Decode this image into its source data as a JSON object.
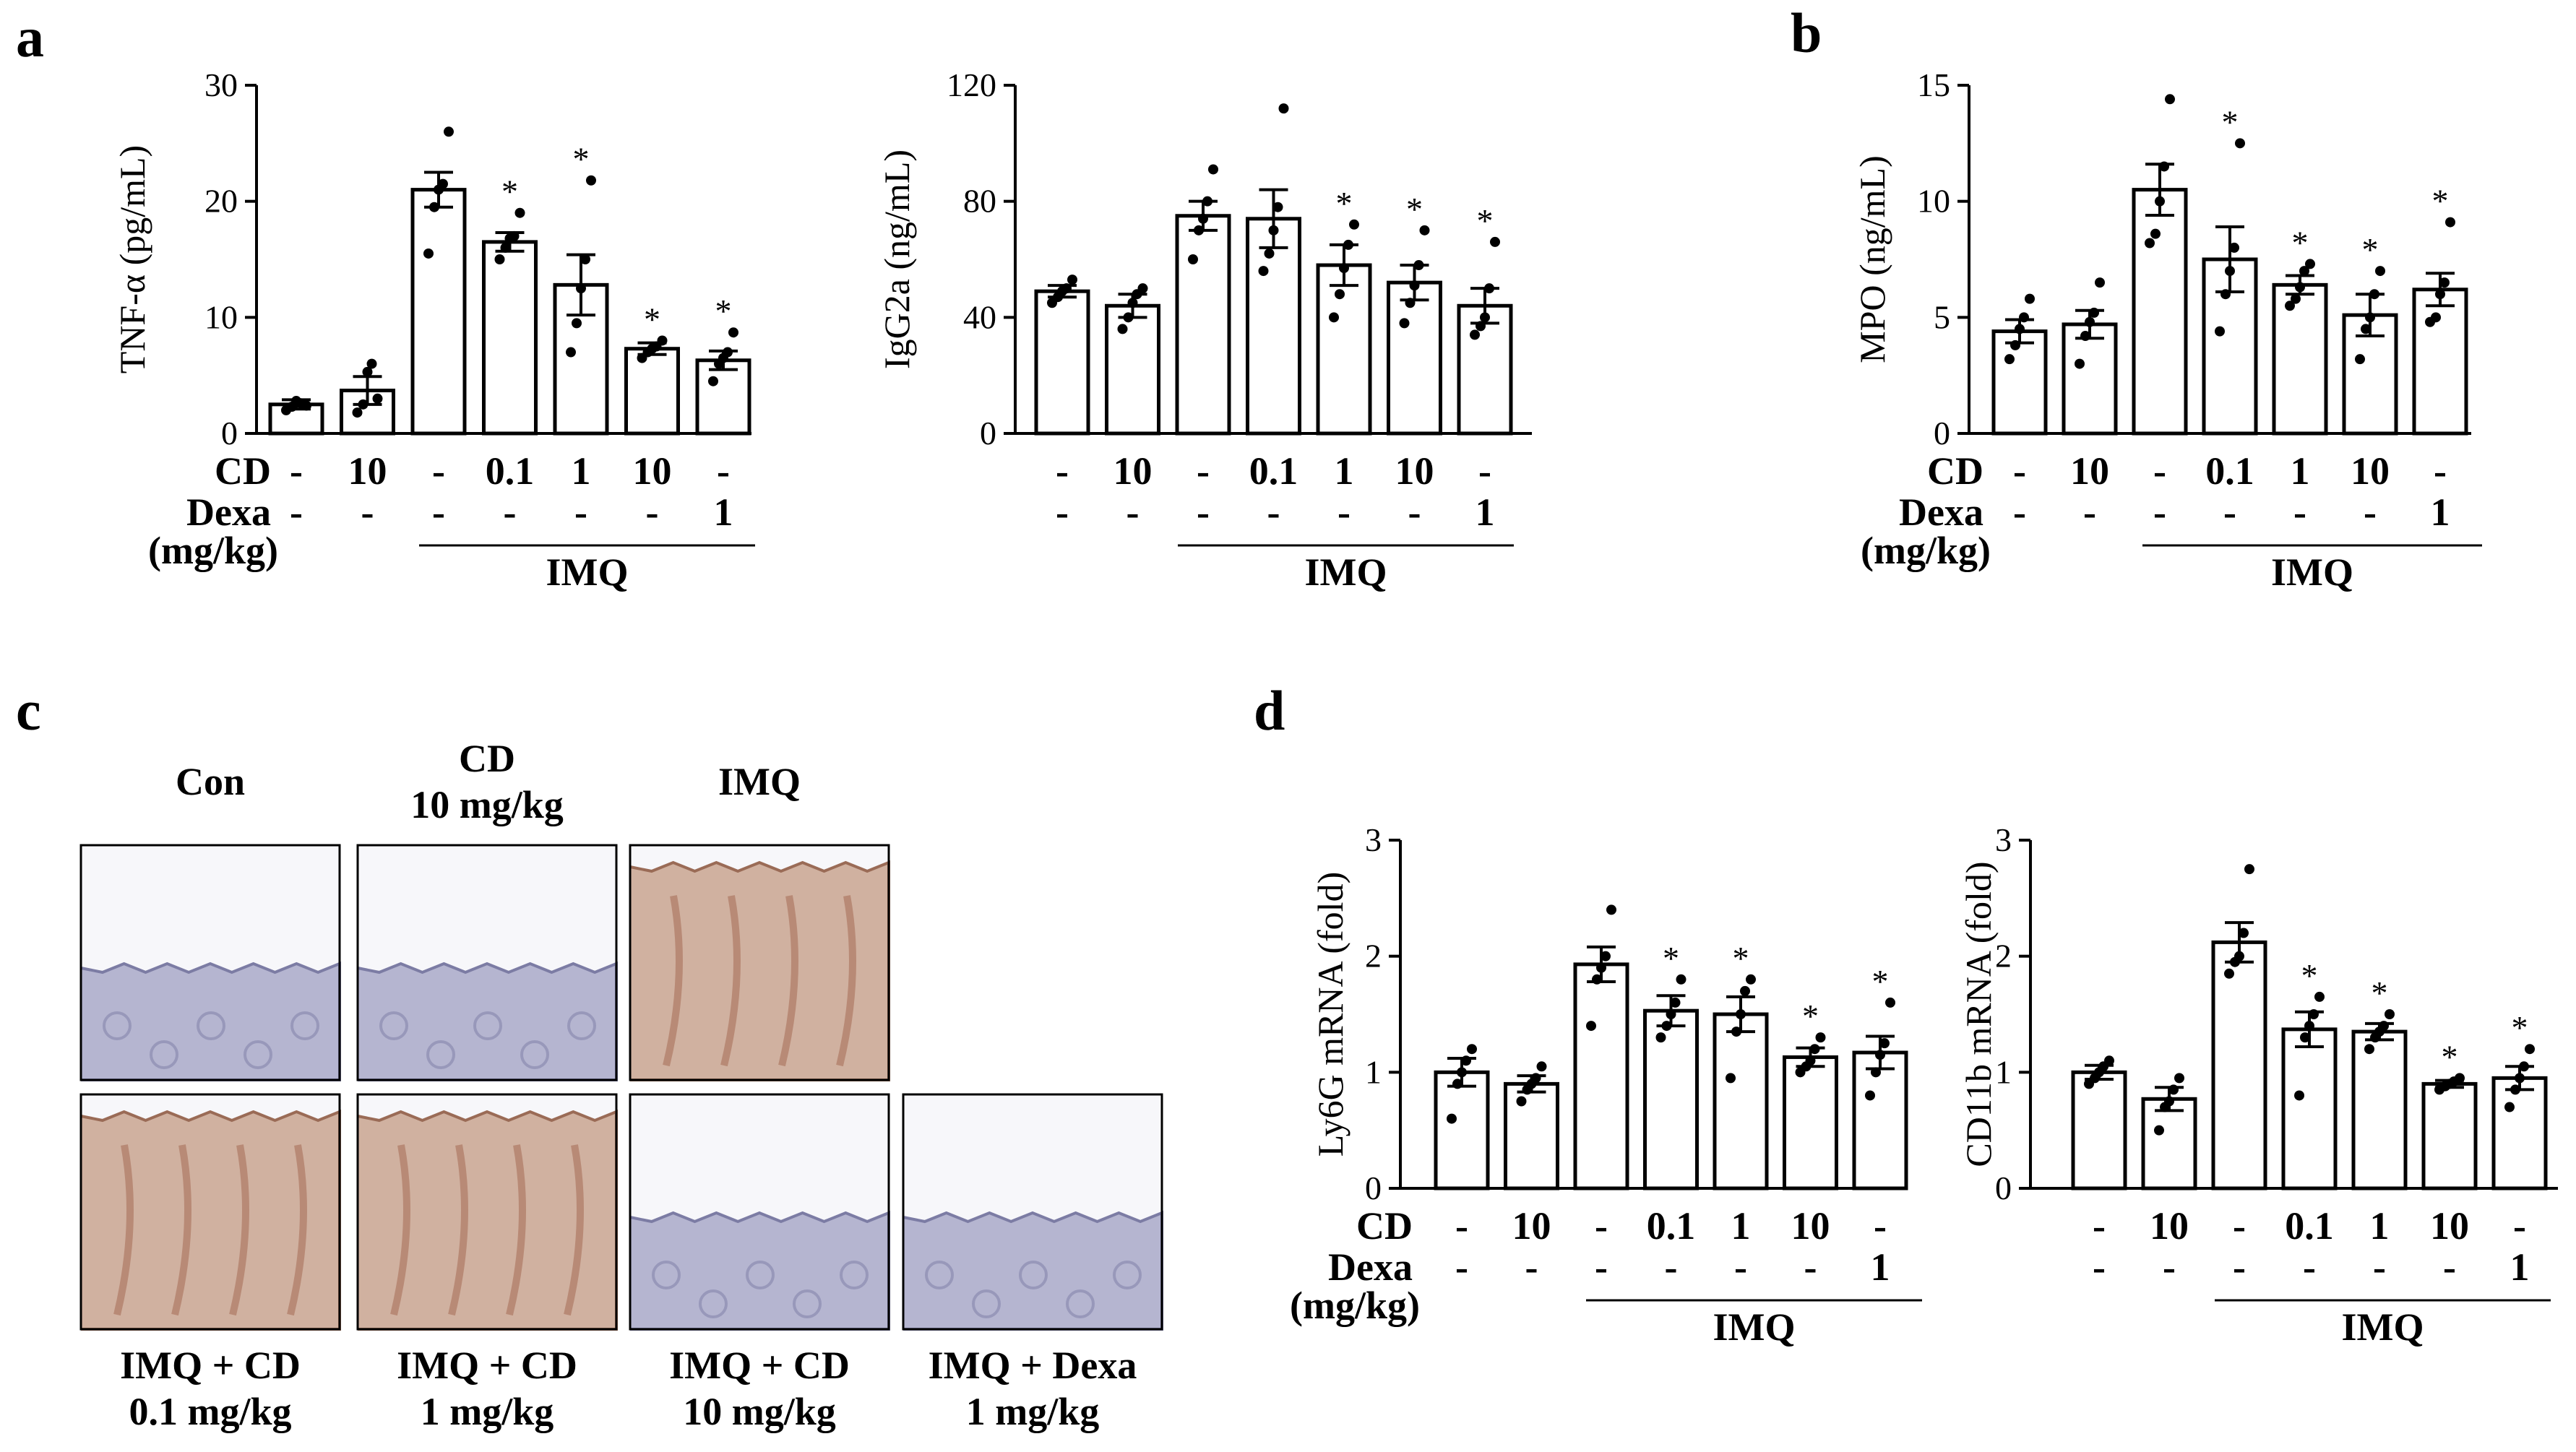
{
  "panel_labels": {
    "a": "a",
    "b": "b",
    "c": "c",
    "d": "d"
  },
  "row_labels": {
    "cd": "CD",
    "dexa": "Dexa",
    "unit": "(mg/kg)",
    "imq": "IMQ"
  },
  "groups": {
    "cd": [
      "-",
      "10",
      "-",
      "0.1",
      "1",
      "10",
      "-"
    ],
    "dexa": [
      "-",
      "-",
      "-",
      "-",
      "-",
      "-",
      "1"
    ]
  },
  "significance_mark": "*",
  "histology": {
    "row1": [
      {
        "title": [
          "Con"
        ],
        "style": "normal"
      },
      {
        "title": [
          "CD",
          "10 mg/kg"
        ],
        "style": "normal"
      },
      {
        "title": [
          "IMQ"
        ],
        "style": "inflamed"
      }
    ],
    "row2": [
      {
        "title": [
          "IMQ + CD",
          "0.1 mg/kg"
        ],
        "style": "inflamed"
      },
      {
        "title": [
          "IMQ + CD",
          "1 mg/kg"
        ],
        "style": "inflamed"
      },
      {
        "title": [
          "IMQ + CD",
          "10 mg/kg"
        ],
        "style": "normal"
      },
      {
        "title": [
          "IMQ + Dexa",
          "1 mg/kg"
        ],
        "style": "normal"
      }
    ]
  },
  "colors": {
    "bar_fill": "#ffffff",
    "stroke": "#000000",
    "tissue_normal": "#a9a9c8",
    "tissue_inflamed": "#c9a48f"
  },
  "chart_data": [
    {
      "id": "tnf",
      "panel": "a",
      "type": "bar",
      "ylabel": "TNF-α (pg/mL)",
      "ylim": [
        0,
        30
      ],
      "yticks": [
        0,
        10,
        20,
        30
      ],
      "show_row_labels": true,
      "values": [
        2.5,
        3.7,
        21.0,
        16.5,
        12.8,
        7.3,
        6.3
      ],
      "errors": [
        0.4,
        1.2,
        1.5,
        0.8,
        2.6,
        0.5,
        0.8
      ],
      "points": [
        [
          2.0,
          2.3,
          2.8,
          2.6,
          2.4
        ],
        [
          1.8,
          2.5,
          5.3,
          6.0,
          3.0
        ],
        [
          15.5,
          19.5,
          21.0,
          21.5,
          26.0
        ],
        [
          15.0,
          16.0,
          16.8,
          17.0,
          19.0
        ],
        [
          7.0,
          9.5,
          12.5,
          15.0,
          21.8
        ],
        [
          6.5,
          7.0,
          7.3,
          7.5,
          8.0
        ],
        [
          4.5,
          6.0,
          6.5,
          7.0,
          8.7
        ]
      ],
      "significant": [
        false,
        false,
        false,
        true,
        true,
        true,
        true
      ]
    },
    {
      "id": "igg2a",
      "panel": "a",
      "type": "bar",
      "ylabel": "IgG2a (ng/mL)",
      "ylim": [
        0,
        120
      ],
      "yticks": [
        0,
        40,
        80,
        120
      ],
      "show_row_labels": false,
      "values": [
        49,
        44,
        75,
        74,
        58,
        52,
        44
      ],
      "errors": [
        2,
        4,
        5,
        10,
        7,
        6,
        6
      ],
      "points": [
        [
          45,
          47,
          49,
          50,
          53
        ],
        [
          36,
          40,
          45,
          48,
          50
        ],
        [
          60,
          70,
          74,
          80,
          91
        ],
        [
          56,
          62,
          70,
          78,
          112
        ],
        [
          40,
          48,
          57,
          65,
          72
        ],
        [
          38,
          45,
          51,
          58,
          70
        ],
        [
          34,
          37,
          40,
          50,
          66
        ]
      ],
      "significant": [
        false,
        false,
        false,
        false,
        true,
        true,
        true
      ]
    },
    {
      "id": "mpo",
      "panel": "b",
      "type": "bar",
      "ylabel": "MPO (ng/mL)",
      "ylim": [
        0,
        15
      ],
      "yticks": [
        0,
        5,
        10,
        15
      ],
      "show_row_labels": true,
      "values": [
        4.4,
        4.7,
        10.5,
        7.5,
        6.4,
        5.1,
        6.2
      ],
      "errors": [
        0.5,
        0.6,
        1.1,
        1.4,
        0.4,
        0.9,
        0.7
      ],
      "points": [
        [
          3.2,
          3.8,
          4.5,
          5.0,
          5.8
        ],
        [
          3.0,
          4.2,
          4.8,
          5.2,
          6.5
        ],
        [
          8.2,
          8.6,
          10.0,
          11.5,
          14.4
        ],
        [
          4.4,
          6.0,
          7.0,
          8.0,
          12.5
        ],
        [
          5.5,
          5.8,
          6.3,
          7.0,
          7.3
        ],
        [
          3.2,
          4.5,
          5.0,
          6.0,
          7.0
        ],
        [
          4.8,
          5.0,
          6.0,
          6.5,
          9.1
        ]
      ],
      "significant": [
        false,
        false,
        false,
        true,
        true,
        true,
        true
      ]
    },
    {
      "id": "ly6g",
      "panel": "d",
      "type": "bar",
      "ylabel": "Ly6G mRNA (fold)",
      "ylim": [
        0,
        3
      ],
      "yticks": [
        0,
        1,
        2,
        3
      ],
      "show_row_labels": true,
      "values": [
        1.0,
        0.9,
        1.93,
        1.53,
        1.5,
        1.13,
        1.17
      ],
      "errors": [
        0.12,
        0.07,
        0.15,
        0.13,
        0.15,
        0.08,
        0.14
      ],
      "points": [
        [
          0.6,
          0.9,
          1.0,
          1.1,
          1.2
        ],
        [
          0.75,
          0.85,
          0.9,
          0.95,
          1.05
        ],
        [
          1.4,
          1.8,
          1.9,
          2.0,
          2.4
        ],
        [
          1.3,
          1.4,
          1.5,
          1.6,
          1.8
        ],
        [
          0.95,
          1.35,
          1.5,
          1.7,
          1.8
        ],
        [
          1.0,
          1.05,
          1.1,
          1.2,
          1.3
        ],
        [
          0.8,
          1.0,
          1.15,
          1.25,
          1.6
        ]
      ],
      "significant": [
        false,
        false,
        false,
        true,
        true,
        true,
        true
      ]
    },
    {
      "id": "cd11b",
      "panel": "d",
      "type": "bar",
      "ylabel": "CD11b mRNA (fold)",
      "ylim": [
        0,
        3
      ],
      "yticks": [
        0,
        1,
        2,
        3
      ],
      "show_row_labels": false,
      "values": [
        1.0,
        0.77,
        2.12,
        1.37,
        1.35,
        0.9,
        0.95
      ],
      "errors": [
        0.06,
        0.1,
        0.17,
        0.15,
        0.07,
        0.03,
        0.1
      ],
      "points": [
        [
          0.9,
          0.95,
          1.0,
          1.05,
          1.1
        ],
        [
          0.5,
          0.7,
          0.75,
          0.85,
          0.95
        ],
        [
          1.85,
          1.95,
          2.0,
          2.2,
          2.75
        ],
        [
          0.8,
          1.3,
          1.4,
          1.5,
          1.65
        ],
        [
          1.2,
          1.3,
          1.35,
          1.4,
          1.5
        ],
        [
          0.85,
          0.88,
          0.9,
          0.92,
          0.95
        ],
        [
          0.7,
          0.85,
          0.95,
          1.05,
          1.2
        ]
      ],
      "significant": [
        false,
        false,
        false,
        true,
        true,
        true,
        true
      ]
    }
  ]
}
